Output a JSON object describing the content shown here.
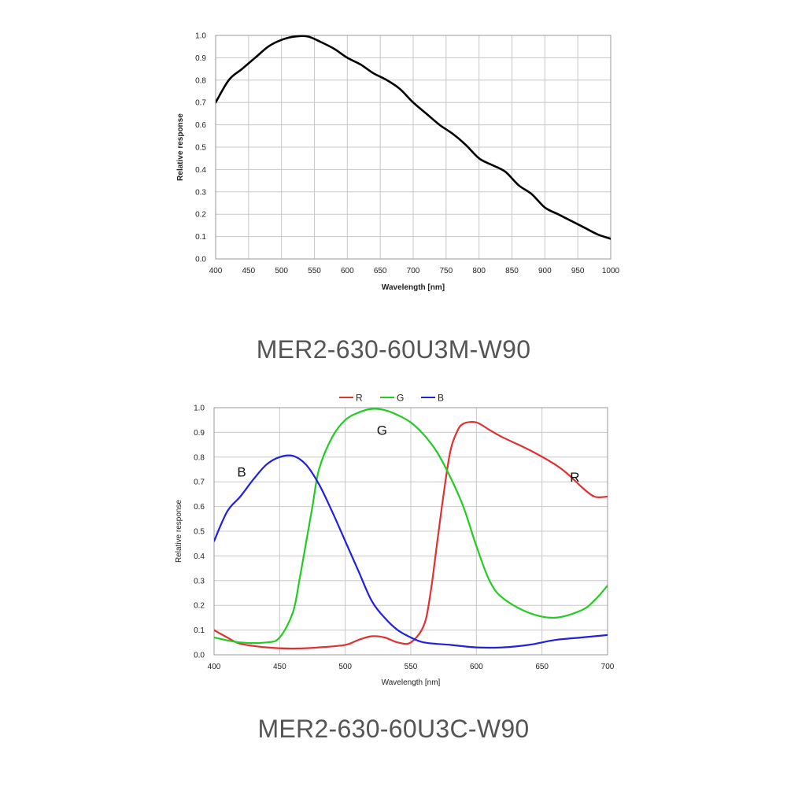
{
  "chart_data": [
    {
      "type": "line",
      "xlabel": "Wavelength [nm]",
      "ylabel": "Relative response",
      "xlim": [
        400,
        1000
      ],
      "ylim": [
        0.0,
        1.0
      ],
      "xticks": [
        "400",
        "450",
        "500",
        "550",
        "600",
        "650",
        "700",
        "750",
        "800",
        "850",
        "900",
        "950",
        "1000"
      ],
      "yticks": [
        "0.0",
        "0.1",
        "0.2",
        "0.3",
        "0.4",
        "0.5",
        "0.6",
        "0.7",
        "0.8",
        "0.9",
        "1.0"
      ],
      "grid": true,
      "series": [
        {
          "color": "#000000",
          "x": [
            400,
            420,
            440,
            460,
            480,
            500,
            520,
            540,
            560,
            580,
            600,
            620,
            640,
            660,
            680,
            700,
            720,
            740,
            760,
            780,
            800,
            820,
            840,
            860,
            880,
            900,
            920,
            940,
            960,
            980,
            1000
          ],
          "y": [
            0.7,
            0.8,
            0.85,
            0.9,
            0.95,
            0.98,
            0.995,
            0.995,
            0.97,
            0.94,
            0.9,
            0.87,
            0.83,
            0.8,
            0.76,
            0.7,
            0.65,
            0.6,
            0.56,
            0.51,
            0.45,
            0.42,
            0.39,
            0.33,
            0.29,
            0.23,
            0.2,
            0.17,
            0.14,
            0.11,
            0.09
          ]
        }
      ]
    },
    {
      "type": "line",
      "xlabel": "Wavelength [nm]",
      "ylabel": "Relative response",
      "xlim": [
        400,
        700
      ],
      "ylim": [
        0.0,
        1.0
      ],
      "xticks": [
        "400",
        "450",
        "500",
        "550",
        "600",
        "650",
        "700"
      ],
      "yticks": [
        "0.0",
        "0.1",
        "0.2",
        "0.3",
        "0.4",
        "0.5",
        "0.6",
        "0.7",
        "0.8",
        "0.9",
        "1.0"
      ],
      "grid": true,
      "legend": "top",
      "series": [
        {
          "name": "R",
          "color": "#e03030",
          "x": [
            400,
            410,
            420,
            440,
            460,
            480,
            500,
            510,
            520,
            530,
            540,
            550,
            560,
            565,
            570,
            575,
            580,
            585,
            590,
            600,
            610,
            620,
            640,
            660,
            670,
            680,
            690,
            700
          ],
          "y": [
            0.1,
            0.07,
            0.045,
            0.03,
            0.025,
            0.03,
            0.04,
            0.06,
            0.075,
            0.07,
            0.05,
            0.05,
            0.12,
            0.25,
            0.45,
            0.65,
            0.82,
            0.9,
            0.935,
            0.94,
            0.91,
            0.88,
            0.83,
            0.77,
            0.73,
            0.68,
            0.64,
            0.64
          ]
        },
        {
          "name": "G",
          "color": "#22cc22",
          "x": [
            400,
            420,
            440,
            450,
            460,
            465,
            470,
            475,
            480,
            490,
            500,
            510,
            520,
            530,
            540,
            550,
            560,
            570,
            580,
            590,
            600,
            610,
            620,
            640,
            660,
            680,
            690,
            700
          ],
          "y": [
            0.07,
            0.05,
            0.05,
            0.07,
            0.17,
            0.3,
            0.45,
            0.6,
            0.75,
            0.88,
            0.95,
            0.98,
            0.995,
            0.99,
            0.97,
            0.94,
            0.89,
            0.82,
            0.72,
            0.6,
            0.44,
            0.3,
            0.23,
            0.17,
            0.15,
            0.18,
            0.22,
            0.28
          ]
        },
        {
          "name": "B",
          "color": "#2020dd",
          "x": [
            400,
            410,
            420,
            430,
            440,
            450,
            460,
            470,
            480,
            490,
            500,
            510,
            520,
            530,
            540,
            550,
            560,
            580,
            600,
            620,
            640,
            660,
            680,
            700
          ],
          "y": [
            0.46,
            0.58,
            0.64,
            0.71,
            0.77,
            0.8,
            0.805,
            0.77,
            0.69,
            0.58,
            0.46,
            0.34,
            0.22,
            0.15,
            0.1,
            0.07,
            0.05,
            0.04,
            0.03,
            0.03,
            0.04,
            0.06,
            0.07,
            0.08
          ]
        }
      ],
      "annotations": [
        {
          "text": "B",
          "x": 421,
          "y": 0.74
        },
        {
          "text": "G",
          "x": 528,
          "y": 0.91
        },
        {
          "text": "R",
          "x": 675,
          "y": 0.72
        }
      ]
    }
  ],
  "captions": {
    "top": "MER2-630-60U3M-W90",
    "bottom": "MER2-630-60U3C-W90"
  }
}
